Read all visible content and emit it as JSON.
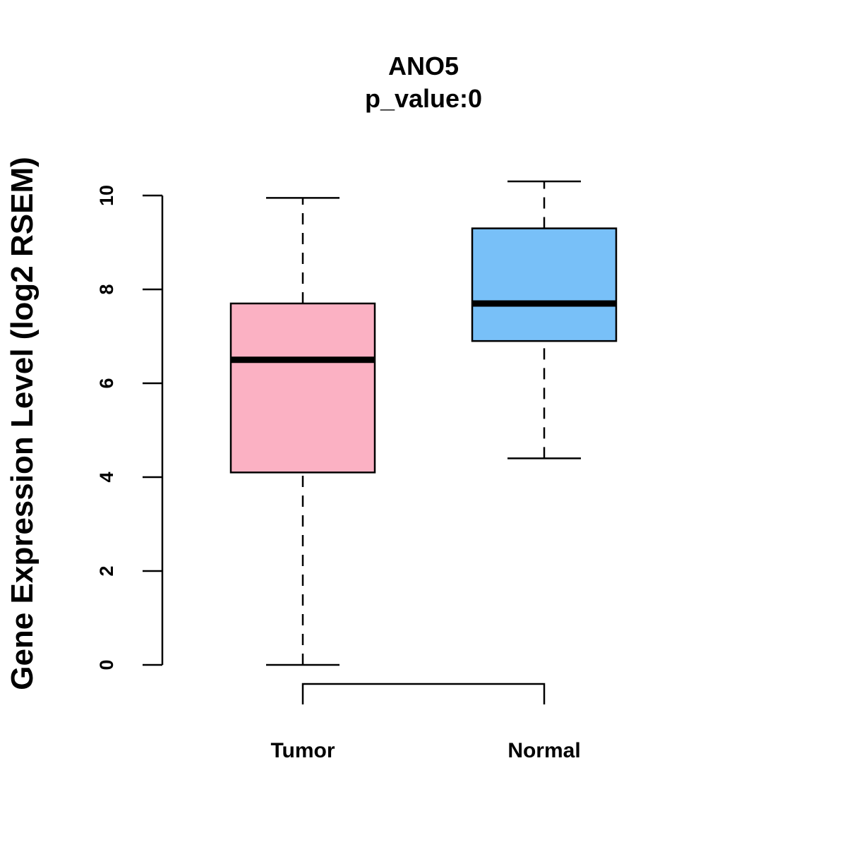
{
  "chart_data": {
    "type": "boxplot",
    "title": "ANO5",
    "subtitle": "p_value:0",
    "xlabel": "",
    "ylabel": "Gene Expression Level (log2 RSEM)",
    "ylim": [
      0,
      10
    ],
    "yticks": [
      0,
      2,
      4,
      6,
      8,
      10
    ],
    "categories": [
      "Tumor",
      "Normal"
    ],
    "boxes": [
      {
        "name": "Tumor",
        "color": "#FBB1C3",
        "min": 0,
        "q1": 4.1,
        "median": 6.5,
        "q3": 7.7,
        "max": 9.95
      },
      {
        "name": "Normal",
        "color": "#78C0F8",
        "min": 4.4,
        "q1": 6.9,
        "median": 7.7,
        "q3": 9.3,
        "max": 10.3
      }
    ],
    "comparison_bracket": [
      "Tumor",
      "Normal"
    ],
    "grid": false
  }
}
